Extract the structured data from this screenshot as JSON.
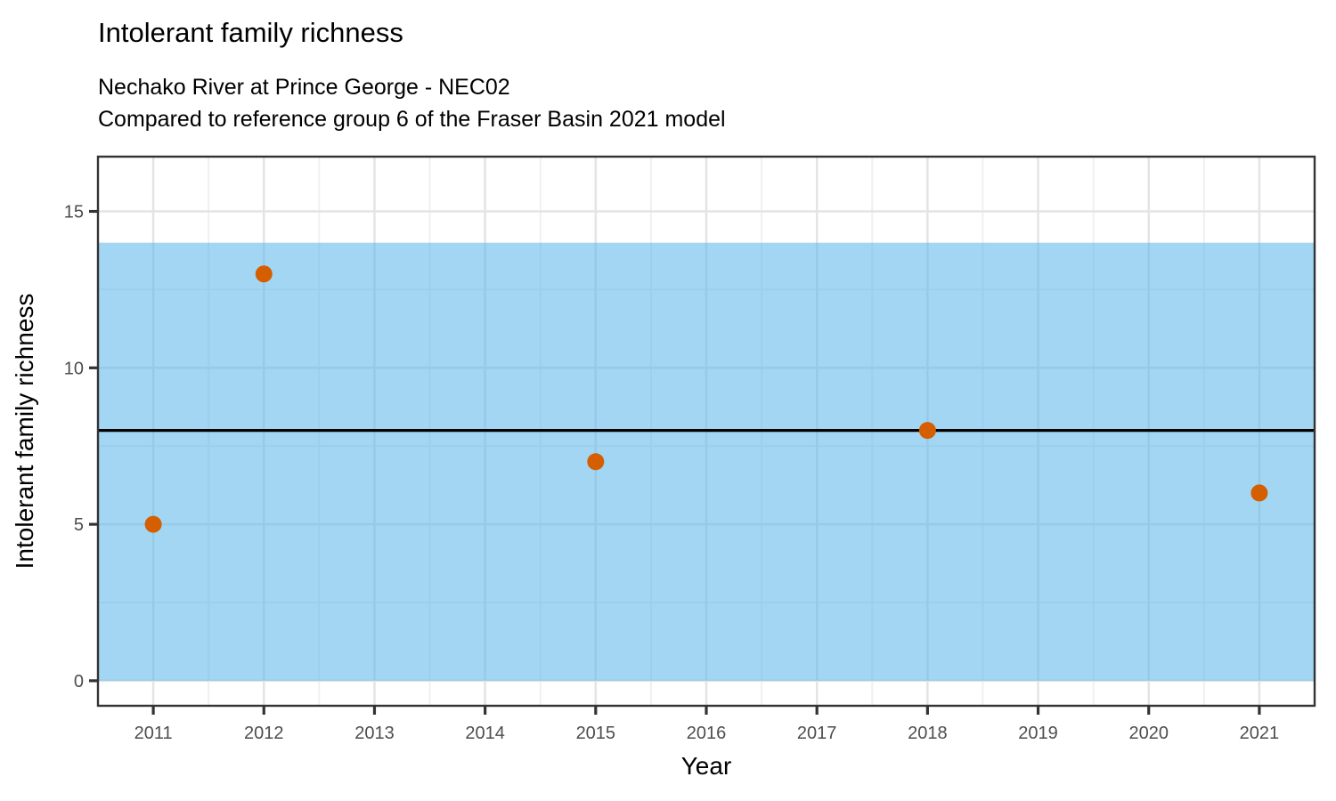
{
  "header": {
    "title": "Intolerant family richness",
    "subtitle_line1": "Nechako River at Prince George - NEC02",
    "subtitle_line2": "Compared to reference group 6 of the Fraser Basin 2021 model"
  },
  "chart_data": {
    "type": "scatter",
    "title": "Intolerant family richness",
    "subtitle": [
      "Nechako River at Prince George - NEC02",
      "Compared to reference group 6 of the Fraser Basin 2021 model"
    ],
    "xlabel": "Year",
    "ylabel": "Intolerant family richness",
    "x": [
      2011,
      2012,
      2015,
      2018,
      2021
    ],
    "y": [
      5,
      13,
      7,
      8,
      6
    ],
    "reference_band": {
      "ymin": 0,
      "ymax": 14
    },
    "reference_line": 8,
    "x_ticks": [
      2011,
      2012,
      2013,
      2014,
      2015,
      2016,
      2017,
      2018,
      2019,
      2020,
      2021
    ],
    "y_ticks": [
      0,
      5,
      10,
      15
    ],
    "y_minor_ticks": [
      2.5,
      7.5,
      12.5
    ],
    "xlim": [
      2010.5,
      2021.5
    ],
    "ylim": [
      -0.8,
      16.75
    ],
    "grid": true,
    "legend": "none",
    "colors": {
      "point": "#D55E00",
      "band": "#56B4E9",
      "band_opacity": 0.55,
      "reference_line": "#000000",
      "grid_major": "#E4E4E4",
      "grid_minor": "#F0F0F0",
      "axis_text": "#4D4D4D",
      "axis_title": "#000000",
      "panel_border": "#333333"
    }
  }
}
